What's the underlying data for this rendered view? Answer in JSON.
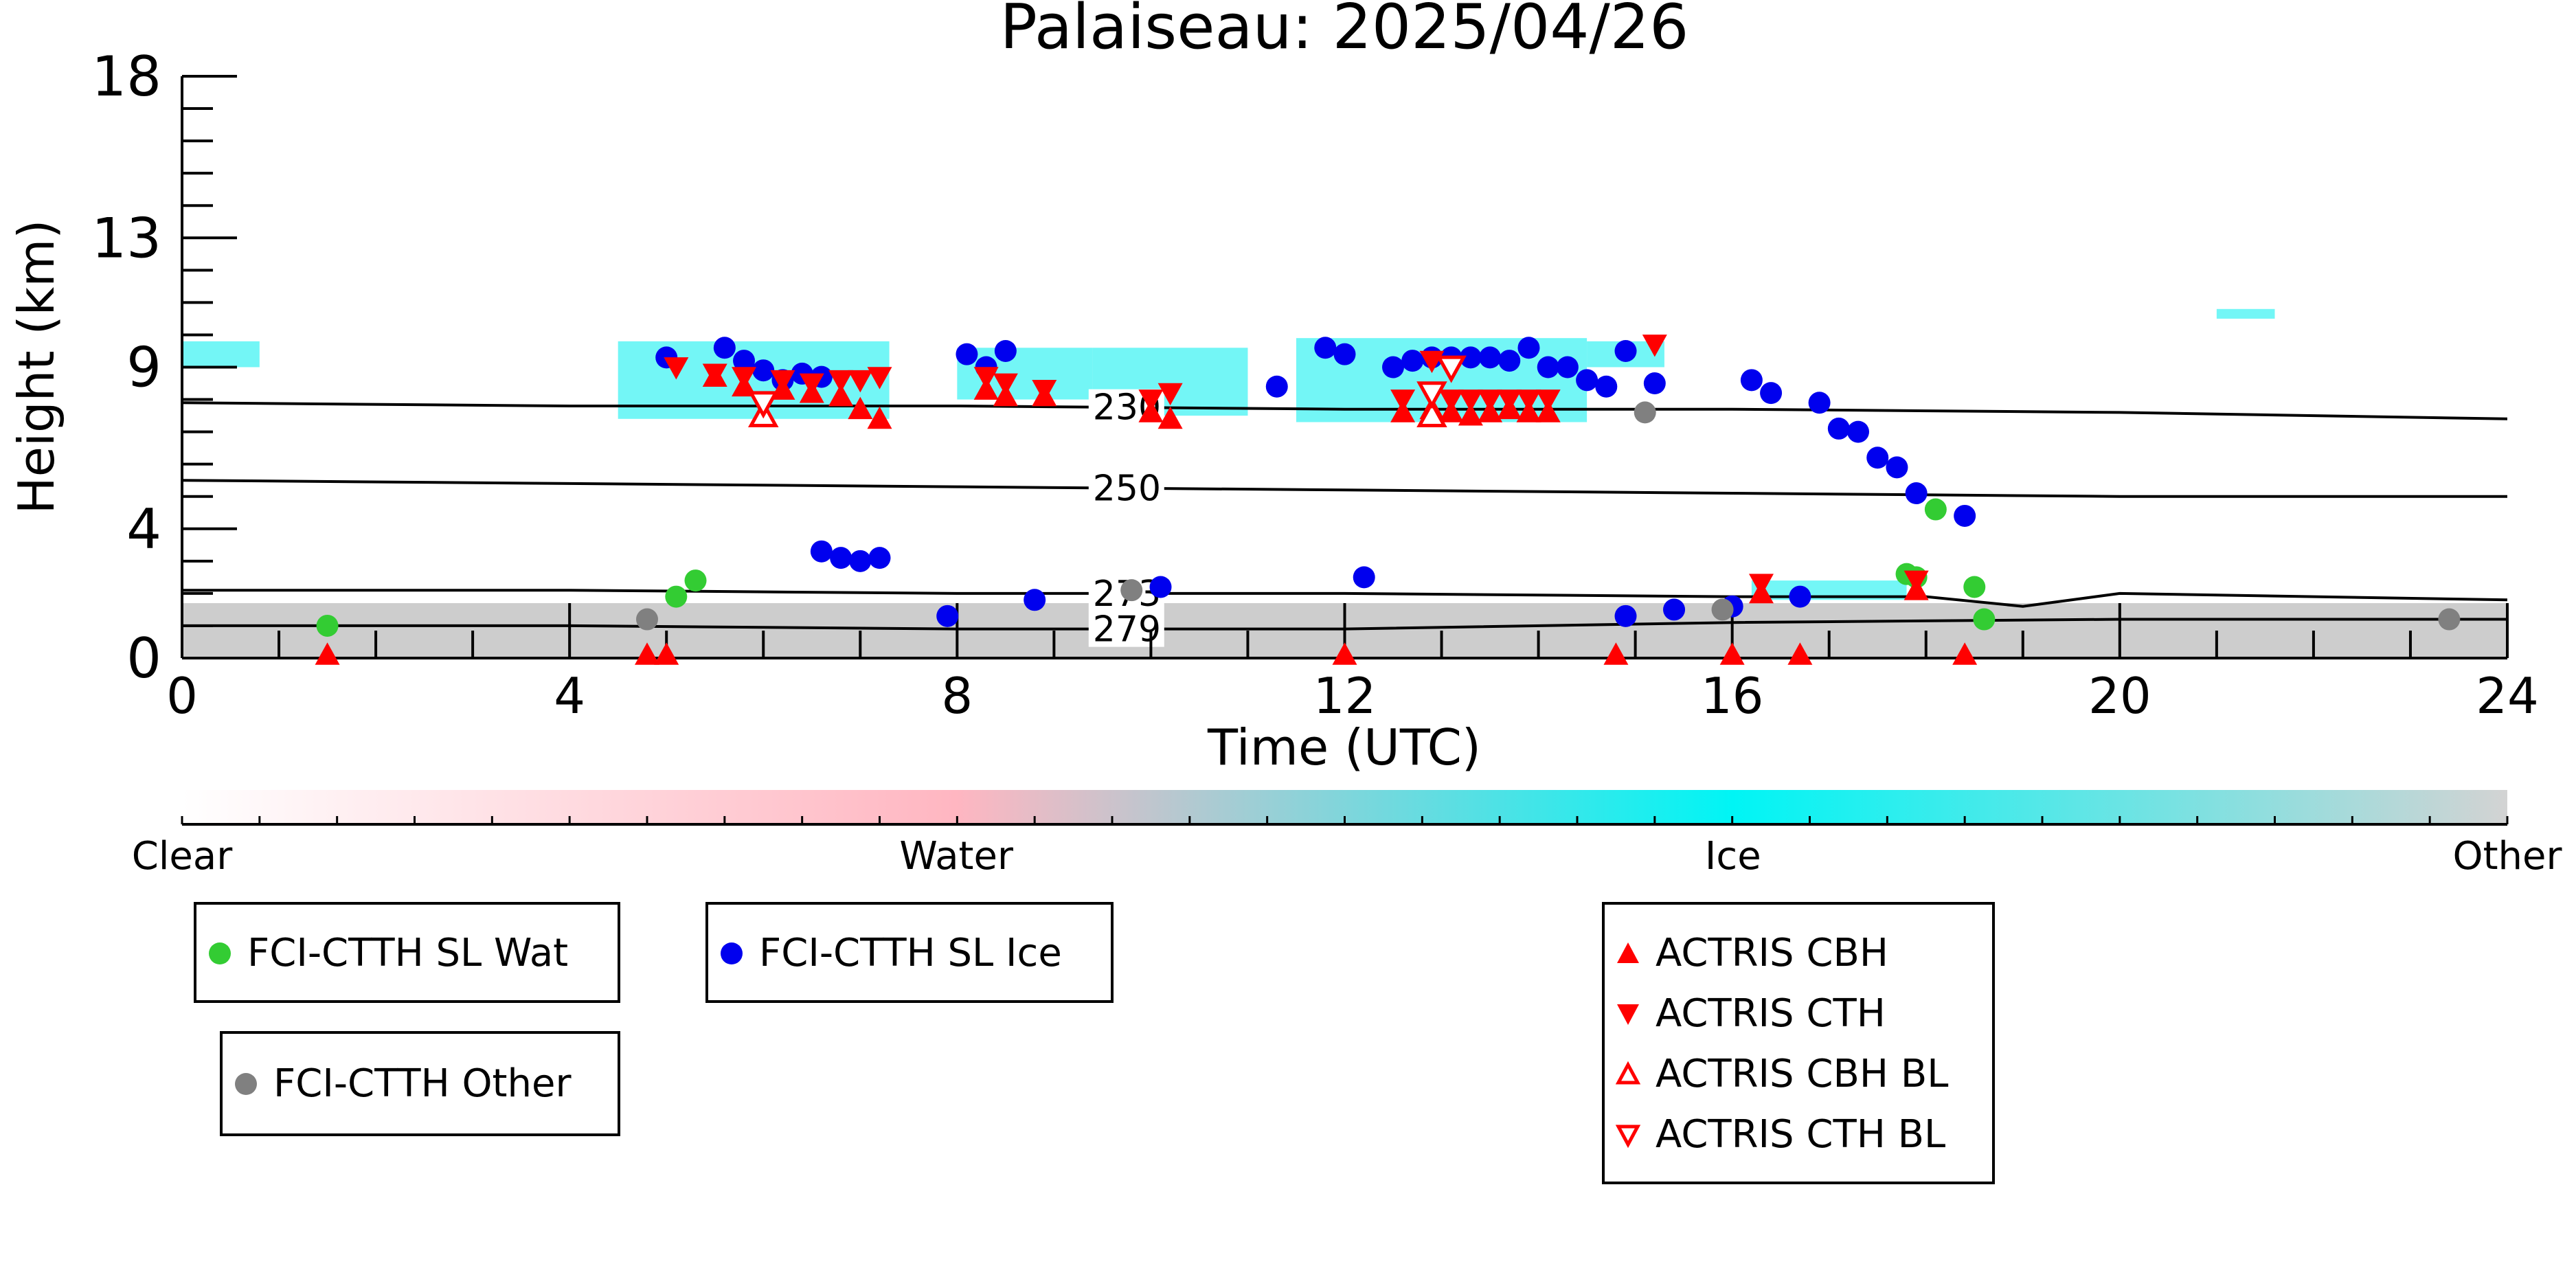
{
  "chart_data": {
    "type": "scatter",
    "title": "Palaiseau: 2025/04/26",
    "xlabel": "Time (UTC)",
    "ylabel": "Height (km)",
    "xlim": [
      0,
      24
    ],
    "ylim": [
      0,
      18
    ],
    "xticks": [
      0,
      4,
      8,
      12,
      16,
      20,
      24
    ],
    "yticks": [
      0,
      4,
      9,
      13,
      18
    ],
    "grid": false,
    "isotherms": [
      {
        "label": "230",
        "points": [
          [
            0,
            7.9
          ],
          [
            4,
            7.8
          ],
          [
            8,
            7.8
          ],
          [
            12,
            7.7
          ],
          [
            16,
            7.7
          ],
          [
            20,
            7.6
          ],
          [
            24,
            7.4
          ]
        ]
      },
      {
        "label": "250",
        "points": [
          [
            0,
            5.5
          ],
          [
            4,
            5.4
          ],
          [
            8,
            5.3
          ],
          [
            12,
            5.2
          ],
          [
            16,
            5.1
          ],
          [
            20,
            5.0
          ],
          [
            24,
            5.0
          ]
        ]
      },
      {
        "label": "273",
        "points": [
          [
            0,
            2.1
          ],
          [
            4,
            2.1
          ],
          [
            8,
            2.0
          ],
          [
            12,
            2.0
          ],
          [
            16,
            1.9
          ],
          [
            18,
            1.9
          ],
          [
            19,
            1.6
          ],
          [
            20,
            2.0
          ],
          [
            24,
            1.8
          ]
        ]
      },
      {
        "label": "279",
        "points": [
          [
            0,
            1.0
          ],
          [
            4,
            1.0
          ],
          [
            8,
            0.9
          ],
          [
            12,
            0.9
          ],
          [
            16,
            1.1
          ],
          [
            20,
            1.2
          ],
          [
            24,
            1.2
          ]
        ]
      }
    ],
    "isotherm_label_x": 9.4,
    "series": [
      {
        "name": "FCI-CTTH SL Wat",
        "marker": "circle",
        "color": "#33cc33",
        "points": [
          [
            1.5,
            1.0
          ],
          [
            5.1,
            1.9
          ],
          [
            5.3,
            2.4
          ],
          [
            17.8,
            2.6
          ],
          [
            17.9,
            2.5
          ],
          [
            18.1,
            4.6
          ],
          [
            18.5,
            2.2
          ],
          [
            18.6,
            1.2
          ]
        ]
      },
      {
        "name": "FCI-CTTH SL Ice",
        "marker": "circle",
        "color": "#0000ee",
        "points": [
          [
            5.0,
            9.3
          ],
          [
            5.6,
            9.6
          ],
          [
            5.8,
            9.2
          ],
          [
            6.0,
            8.9
          ],
          [
            6.2,
            8.6
          ],
          [
            6.4,
            8.8
          ],
          [
            6.6,
            8.7
          ],
          [
            6.6,
            3.3
          ],
          [
            6.8,
            3.1
          ],
          [
            7.0,
            3.0
          ],
          [
            7.2,
            3.1
          ],
          [
            7.9,
            1.3
          ],
          [
            8.1,
            9.4
          ],
          [
            8.3,
            9.0
          ],
          [
            8.5,
            9.5
          ],
          [
            8.8,
            1.8
          ],
          [
            10.1,
            2.2
          ],
          [
            11.3,
            8.4
          ],
          [
            11.8,
            9.6
          ],
          [
            12.0,
            9.4
          ],
          [
            12.2,
            2.5
          ],
          [
            12.5,
            9.0
          ],
          [
            12.7,
            9.2
          ],
          [
            12.9,
            9.3
          ],
          [
            13.1,
            9.3
          ],
          [
            13.3,
            9.3
          ],
          [
            13.5,
            9.3
          ],
          [
            13.7,
            9.2
          ],
          [
            13.9,
            9.6
          ],
          [
            14.1,
            9.0
          ],
          [
            14.3,
            9.0
          ],
          [
            14.5,
            8.6
          ],
          [
            14.7,
            8.4
          ],
          [
            14.9,
            9.5
          ],
          [
            15.2,
            8.5
          ],
          [
            14.9,
            1.3
          ],
          [
            15.4,
            1.5
          ],
          [
            16.0,
            1.6
          ],
          [
            16.2,
            8.6
          ],
          [
            16.4,
            8.2
          ],
          [
            16.7,
            1.9
          ],
          [
            16.9,
            7.9
          ],
          [
            17.1,
            7.1
          ],
          [
            17.3,
            7.0
          ],
          [
            17.5,
            6.2
          ],
          [
            17.7,
            5.9
          ],
          [
            17.9,
            5.1
          ],
          [
            18.4,
            4.4
          ]
        ]
      },
      {
        "name": "FCI-CTTH Other",
        "marker": "circle",
        "color": "#808080",
        "points": [
          [
            4.8,
            1.2
          ],
          [
            9.8,
            2.1
          ],
          [
            15.1,
            7.6
          ],
          [
            15.9,
            1.5
          ],
          [
            23.4,
            1.2
          ]
        ]
      },
      {
        "name": "ACTRIS CBH",
        "marker": "triangle-up",
        "color": "#ff0000",
        "filled": true,
        "points": [
          [
            5.5,
            8.7
          ],
          [
            5.8,
            8.4
          ],
          [
            6.2,
            8.3
          ],
          [
            6.5,
            8.2
          ],
          [
            6.8,
            8.1
          ],
          [
            7.0,
            7.7
          ],
          [
            7.2,
            7.4
          ],
          [
            8.3,
            8.3
          ],
          [
            8.5,
            8.1
          ],
          [
            8.9,
            8.1
          ],
          [
            10.0,
            7.6
          ],
          [
            10.2,
            7.4
          ],
          [
            12.6,
            7.6
          ],
          [
            12.9,
            7.7
          ],
          [
            13.1,
            7.6
          ],
          [
            13.3,
            7.5
          ],
          [
            13.5,
            7.6
          ],
          [
            13.7,
            7.7
          ],
          [
            13.9,
            7.6
          ],
          [
            14.1,
            7.6
          ],
          [
            16.3,
            2.0
          ],
          [
            17.9,
            2.1
          ],
          [
            1.5,
            0.1
          ],
          [
            4.8,
            0.1
          ],
          [
            5.0,
            0.1
          ],
          [
            12.0,
            0.1
          ],
          [
            14.8,
            0.1
          ],
          [
            16.0,
            0.1
          ],
          [
            16.7,
            0.1
          ],
          [
            18.4,
            0.1
          ]
        ]
      },
      {
        "name": "ACTRIS CTH",
        "marker": "triangle-down",
        "color": "#ff0000",
        "filled": true,
        "points": [
          [
            5.1,
            9.0
          ],
          [
            5.5,
            8.8
          ],
          [
            5.8,
            8.7
          ],
          [
            6.2,
            8.6
          ],
          [
            6.5,
            8.5
          ],
          [
            6.8,
            8.6
          ],
          [
            7.0,
            8.6
          ],
          [
            7.2,
            8.7
          ],
          [
            8.3,
            8.7
          ],
          [
            8.5,
            8.5
          ],
          [
            8.9,
            8.3
          ],
          [
            10.0,
            8.0
          ],
          [
            10.2,
            8.2
          ],
          [
            12.6,
            8.0
          ],
          [
            12.9,
            9.2
          ],
          [
            13.1,
            8.0
          ],
          [
            13.3,
            8.0
          ],
          [
            13.5,
            8.0
          ],
          [
            13.7,
            8.0
          ],
          [
            13.9,
            8.0
          ],
          [
            14.1,
            8.0
          ],
          [
            15.2,
            9.7
          ],
          [
            16.3,
            2.3
          ],
          [
            17.9,
            2.4
          ]
        ]
      },
      {
        "name": "ACTRIS CBH BL",
        "marker": "triangle-up",
        "color": "#ff0000",
        "filled": false,
        "points": [
          [
            6.0,
            7.5
          ],
          [
            12.9,
            7.5
          ]
        ]
      },
      {
        "name": "ACTRIS CTH BL",
        "marker": "triangle-down",
        "color": "#ff0000",
        "filled": false,
        "points": [
          [
            6.0,
            7.9
          ],
          [
            12.9,
            8.2
          ],
          [
            13.1,
            9.0
          ]
        ]
      }
    ],
    "cloud_mask_regions": [
      {
        "class": "Ice",
        "color": "#00eeee",
        "x": [
          0.0,
          0.8
        ],
        "y": [
          9.0,
          9.8
        ]
      },
      {
        "class": "Ice",
        "color": "#00eeee",
        "x": [
          4.5,
          7.3
        ],
        "y": [
          7.4,
          9.8
        ]
      },
      {
        "class": "Ice",
        "color": "#00eeee",
        "x": [
          8.0,
          9.4
        ],
        "y": [
          8.0,
          9.6
        ]
      },
      {
        "class": "Ice",
        "color": "#00eeee",
        "x": [
          9.4,
          11.0
        ],
        "y": [
          7.5,
          9.6
        ]
      },
      {
        "class": "Ice",
        "color": "#00eeee",
        "x": [
          11.5,
          14.5
        ],
        "y": [
          7.3,
          9.9
        ]
      },
      {
        "class": "Ice",
        "color": "#00eeee",
        "x": [
          14.5,
          15.3
        ],
        "y": [
          9.0,
          9.8
        ]
      },
      {
        "class": "Ice",
        "color": "#00eeee",
        "x": [
          21.0,
          21.6
        ],
        "y": [
          10.5,
          10.8
        ]
      },
      {
        "class": "Ice",
        "color": "#00eeee",
        "x": [
          16.2,
          17.8
        ],
        "y": [
          1.8,
          2.4
        ]
      },
      {
        "class": "Other",
        "color": "#c8c8c8",
        "x": [
          0.0,
          24.0
        ],
        "y": [
          0.0,
          1.7
        ]
      }
    ],
    "colorbar": {
      "labels": [
        "Clear",
        "Water",
        "Ice",
        "Other"
      ],
      "colors": [
        "#ffffff",
        "#ffb6c1",
        "#00f5f5",
        "#d3d3d3"
      ]
    },
    "legend": {
      "groups": [
        [
          "FCI-CTTH SL Wat"
        ],
        [
          "FCI-CTTH SL Ice"
        ],
        [
          "FCI-CTTH Other"
        ],
        [
          "ACTRIS CBH",
          "ACTRIS CTH",
          "ACTRIS CBH BL",
          "ACTRIS CTH BL"
        ]
      ]
    }
  }
}
